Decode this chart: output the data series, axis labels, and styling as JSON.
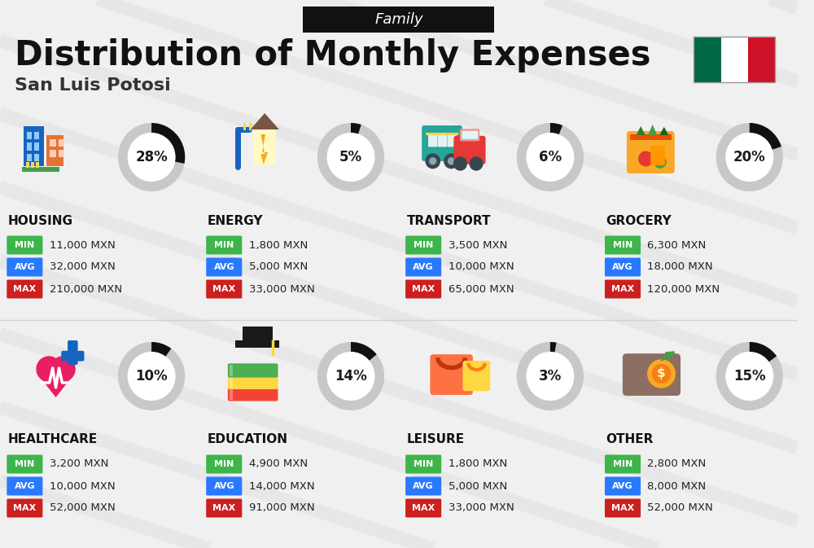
{
  "title": "Distribution of Monthly Expenses",
  "subtitle": "San Luis Potosi",
  "header_label": "Family",
  "bg_color": "#f0f0f0",
  "categories": [
    {
      "name": "HOUSING",
      "pct": 28,
      "min": "11,000 MXN",
      "avg": "32,000 MXN",
      "max": "210,000 MXN"
    },
    {
      "name": "ENERGY",
      "pct": 5,
      "min": "1,800 MXN",
      "avg": "5,000 MXN",
      "max": "33,000 MXN"
    },
    {
      "name": "TRANSPORT",
      "pct": 6,
      "min": "3,500 MXN",
      "avg": "10,000 MXN",
      "max": "65,000 MXN"
    },
    {
      "name": "GROCERY",
      "pct": 20,
      "min": "6,300 MXN",
      "avg": "18,000 MXN",
      "max": "120,000 MXN"
    },
    {
      "name": "HEALTHCARE",
      "pct": 10,
      "min": "3,200 MXN",
      "avg": "10,000 MXN",
      "max": "52,000 MXN"
    },
    {
      "name": "EDUCATION",
      "pct": 14,
      "min": "4,900 MXN",
      "avg": "14,000 MXN",
      "max": "91,000 MXN"
    },
    {
      "name": "LEISURE",
      "pct": 3,
      "min": "1,800 MXN",
      "avg": "5,000 MXN",
      "max": "33,000 MXN"
    },
    {
      "name": "OTHER",
      "pct": 15,
      "min": "2,800 MXN",
      "avg": "8,000 MXN",
      "max": "52,000 MXN"
    }
  ],
  "color_min": "#3DB54A",
  "color_avg": "#2979FF",
  "color_max": "#CC1F1F",
  "donut_fill": "#111111",
  "donut_empty": "#c8c8c8",
  "mexico_flag": [
    "#006847",
    "#ffffff",
    "#ce1126"
  ],
  "flag_border": "#999999",
  "header_bg": "#111111",
  "header_fg": "#ffffff",
  "title_color": "#111111",
  "subtitle_color": "#333333",
  "value_color": "#222222",
  "cat_name_color": "#111111",
  "diag_color": "#e0e0e0",
  "divider_color": "#cccccc"
}
